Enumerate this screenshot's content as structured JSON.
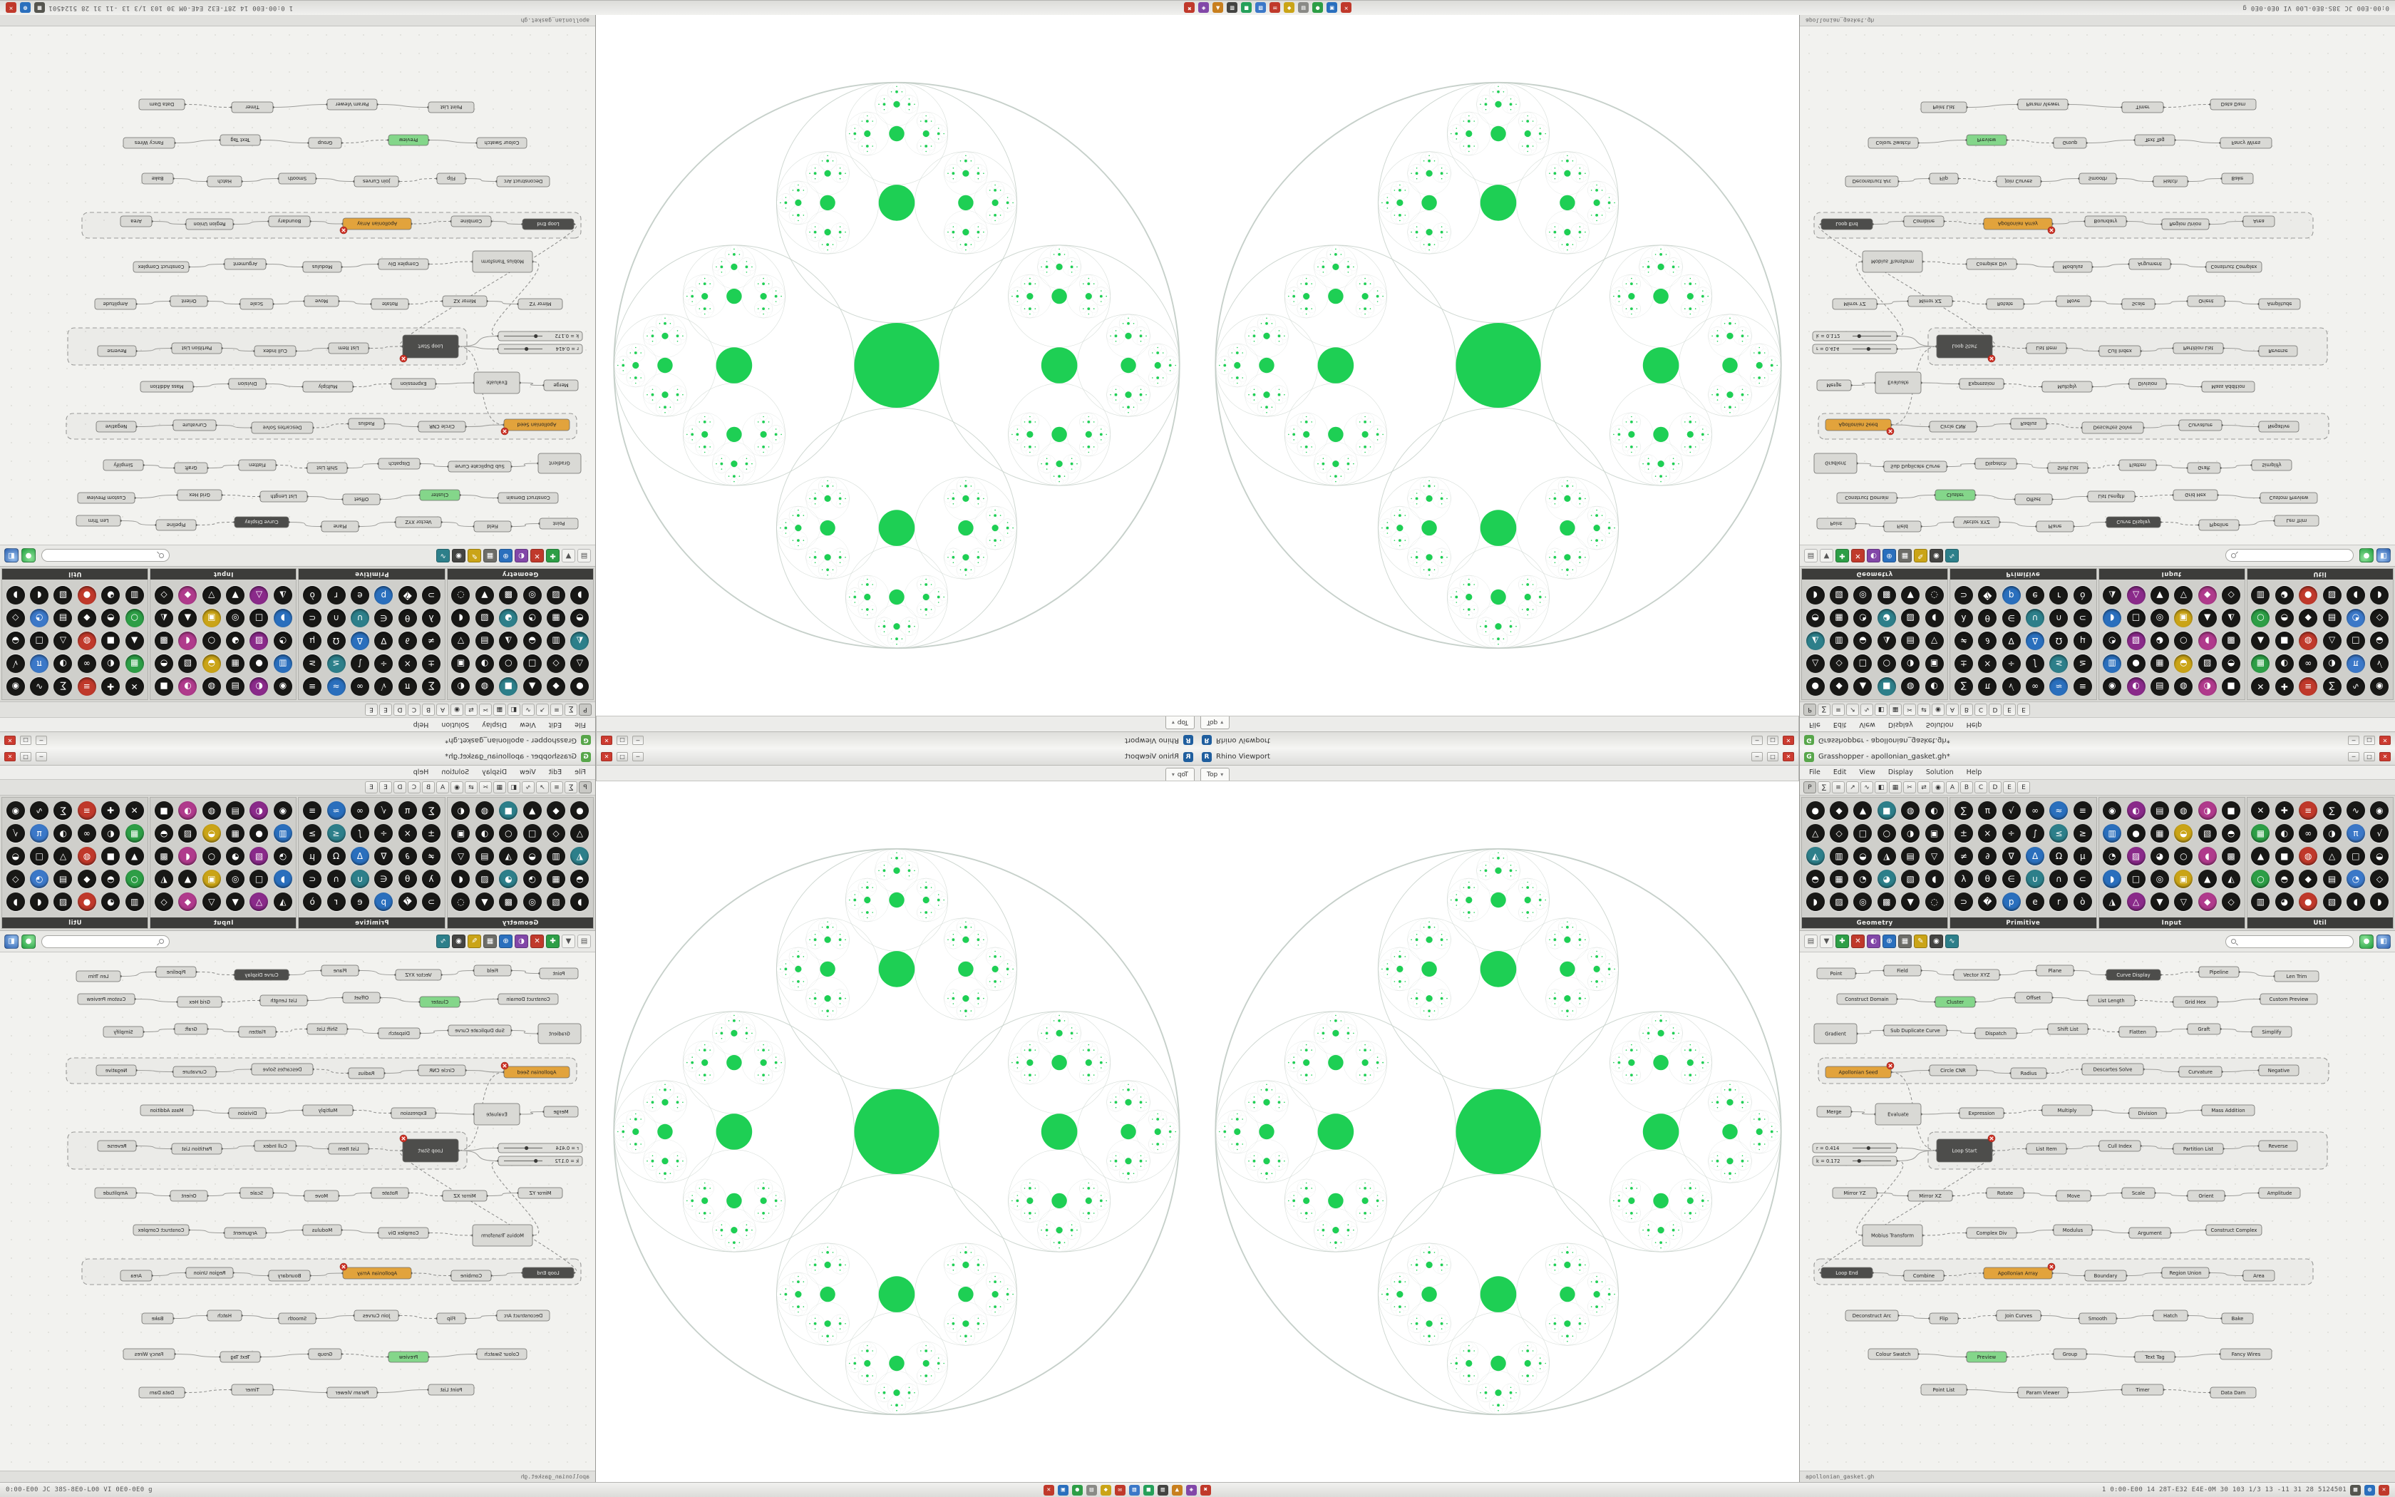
{
  "os_bar": {
    "left_text": "0:00-E00 JC 38S-8E0-L00 VI 0E0-0E0 g",
    "right_text": "1 0:00-E00 14 28T-E32 E4E-0M 30 103 1/3 13 -11 31 28 5124501",
    "center_icons": [
      {
        "name": "tray-close-icon",
        "g": "✕",
        "bg": "#c0392b"
      },
      {
        "name": "tray-files-icon",
        "g": "▣",
        "bg": "#2a6fbd"
      },
      {
        "name": "tray-chat-icon",
        "g": "●",
        "bg": "#2d9e46"
      },
      {
        "name": "tray-window-icon",
        "g": "▤",
        "bg": "#8a8a86"
      },
      {
        "name": "tray-media-icon",
        "g": "◆",
        "bg": "#caa417"
      },
      {
        "name": "tray-mail-icon",
        "g": "✉",
        "bg": "#c0392b"
      },
      {
        "name": "tray-net-icon",
        "g": "▧",
        "bg": "#3b78c8"
      },
      {
        "name": "tray-disk-icon",
        "g": "■",
        "bg": "#25a05a"
      },
      {
        "name": "tray-terminal-icon",
        "g": "▥",
        "bg": "#444442"
      },
      {
        "name": "tray-paint-icon",
        "g": "▲",
        "bg": "#c87f1e"
      },
      {
        "name": "tray-music-icon",
        "g": "◈",
        "bg": "#8247a8"
      },
      {
        "name": "tray-quit-icon",
        "g": "✖",
        "bg": "#c0392b"
      }
    ],
    "right_icons": [
      {
        "name": "tray-grid-icon",
        "g": "▦",
        "bg": "#55554f"
      },
      {
        "name": "tray-globe-icon",
        "g": "◍",
        "bg": "#2a6fbd"
      },
      {
        "name": "tray-alert-icon",
        "g": "✕",
        "bg": "#c0392b"
      }
    ]
  },
  "chrome": {
    "win_buttons": [
      "─",
      "□",
      "✕"
    ],
    "rhino_icon": "R",
    "gh_icon": "G",
    "caret": "▾"
  },
  "viewport": {
    "title": "Rhino Viewport",
    "tab": "Top",
    "fractal": {
      "green": "#1ecf54",
      "outline": "#c3cec7",
      "depth": 5,
      "center_ratio": 0.15,
      "child_ratio": 0.425
    }
  },
  "gh": {
    "title": "Grasshopper - apollonian_gasket.gh*",
    "status": "apollonian_gasket.gh",
    "menus": [
      "File",
      "Edit",
      "View",
      "Display",
      "Solution",
      "Help"
    ],
    "tabs": [
      "P",
      "∑",
      "≡",
      "↗",
      "∿",
      "◧",
      "▦",
      "✂",
      "⇄",
      "◉",
      "A",
      "B",
      "C",
      "D",
      "E",
      "E"
    ],
    "search_placeholder": "",
    "palette": [
      {
        "name": "Geometry",
        "glyphs": "●◆▲■◍◐△◇□○◑▣◭▥◒◮▤▽◓▦◔◕▧◖◗▨◎▩▼◌",
        "colors": [
          "#181816",
          "#181816",
          "#181816",
          "#2d7f8a",
          "#181816",
          "#181816",
          "#181816",
          "#181816",
          "#181816"
        ]
      },
      {
        "name": "Primitive",
        "glyphs": "∑π√∞≈≡±×÷∫≤≥≠∂∇ΔΩμλθ∈∪∩⊂⊃�però△◆□",
        "colors": [
          "#181816",
          "#181816",
          "#181816",
          "#181816",
          "#2a6fbd",
          "#181816",
          "#181816",
          "#181816",
          "#181816",
          "#181816",
          "#2d7f8a"
        ]
      },
      {
        "name": "Input",
        "glyphs": "◉◐▤◍◑■▥●▦◒▧◓◔▨◕○◖▩◗□◎▣▲◭◮△▼▽◆◇",
        "colors": [
          "#181816",
          "#8a2a8a",
          "#181816",
          "#181816",
          "#b03a8c",
          "#181816",
          "#2a6fbd",
          "#181816",
          "#181816",
          "#caa417",
          "#181816",
          "#181816"
        ]
      },
      {
        "name": "Util",
        "glyphs": "✕✚≡∑∿◉▦◐∞◑π√▲■◍△□◒○◓◆▤◔◇▥◕●▧◖◗",
        "colors": [
          "#181816",
          "#181816",
          "#c0392b",
          "#181816",
          "#181816",
          "#181816",
          "#2d9e46",
          "#181816",
          "#181816",
          "#181816",
          "#3b78c8",
          "#181816"
        ]
      }
    ],
    "toolbar": {
      "icons": [
        {
          "name": "open-file-icon",
          "g": "▤",
          "bg": "#f2f2ef",
          "fg": "#555"
        },
        {
          "name": "save-file-icon",
          "g": "▼",
          "bg": "#f2f2ef",
          "fg": "#555"
        },
        {
          "name": "zoom-in-icon",
          "g": "✚",
          "bg": "#2d9e46",
          "fg": "#fff"
        },
        {
          "name": "zoom-out-icon",
          "g": "✕",
          "bg": "#c0392b",
          "fg": "#fff"
        },
        {
          "name": "preview-shaded-icon",
          "g": "◐",
          "bg": "#8247a8",
          "fg": "#fff"
        },
        {
          "name": "zoom-extents-icon",
          "g": "⊕",
          "bg": "#2a6fbd",
          "fg": "#fff"
        },
        {
          "name": "grid-snap-icon",
          "g": "▦",
          "bg": "#6d6d68",
          "fg": "#fff"
        },
        {
          "name": "sketch-tool-icon",
          "g": "✎",
          "bg": "#caa417",
          "fg": "#fff"
        },
        {
          "name": "target-icon",
          "g": "◉",
          "bg": "#444442",
          "fg": "#fff"
        },
        {
          "name": "wire-display-icon",
          "g": "∿",
          "bg": "#2d7f8a",
          "fg": "#fff"
        }
      ],
      "view_buttons": [
        {
          "name": "preview-on-button",
          "g": "●",
          "bg1": "#8fe39a",
          "bg2": "#1f9e3d"
        },
        {
          "name": "preview-wire-button",
          "g": "◧",
          "bg1": "#9cc3ef",
          "bg2": "#2a5fae"
        }
      ]
    },
    "canvas": {
      "nodes": [
        [
          24,
          22,
          54,
          15,
          "Point",
          "g"
        ],
        [
          118,
          18,
          52,
          15,
          "Field",
          "g"
        ],
        [
          216,
          24,
          64,
          15,
          "Vector XYZ",
          "g"
        ],
        [
          332,
          18,
          52,
          15,
          "Plane",
          "g"
        ],
        [
          430,
          24,
          76,
          15,
          "Curve Display",
          "d"
        ],
        [
          560,
          20,
          56,
          15,
          "Pipeline",
          "g"
        ],
        [
          666,
          26,
          62,
          15,
          "Len Trim",
          "g"
        ],
        [
          52,
          58,
          84,
          15,
          "Construct Domain",
          "g"
        ],
        [
          190,
          62,
          56,
          15,
          "Cluster",
          "s"
        ],
        [
          302,
          56,
          52,
          15,
          "Offset",
          "g"
        ],
        [
          404,
          60,
          66,
          15,
          "List Length",
          "g"
        ],
        [
          524,
          62,
          62,
          15,
          "Grid Hex",
          "g"
        ],
        [
          646,
          58,
          80,
          15,
          "Custom Preview",
          "g"
        ],
        [
          20,
          100,
          60,
          28,
          "Gradient",
          "g"
        ],
        [
          118,
          102,
          88,
          15,
          "Sub Duplicate Curve",
          "g"
        ],
        [
          246,
          106,
          58,
          15,
          "Dispatch",
          "g"
        ],
        [
          348,
          100,
          56,
          15,
          "Shift List",
          "g"
        ],
        [
          448,
          104,
          52,
          15,
          "Flatten",
          "g"
        ],
        [
          544,
          100,
          46,
          15,
          "Graft",
          "g"
        ],
        [
          634,
          104,
          56,
          15,
          "Simplify",
          "g"
        ],
        [
          36,
          160,
          92,
          16,
          "Apollonian Seed",
          "w"
        ],
        [
          182,
          158,
          66,
          15,
          "Circle CNR",
          "g"
        ],
        [
          296,
          162,
          50,
          15,
          "Radius",
          "g"
        ],
        [
          396,
          156,
          86,
          16,
          "Descartes Solve",
          "g"
        ],
        [
          532,
          160,
          60,
          15,
          "Curvature",
          "g"
        ],
        [
          644,
          158,
          56,
          15,
          "Negative",
          "g"
        ],
        [
          24,
          216,
          48,
          15,
          "Merge",
          "g"
        ],
        [
          106,
          212,
          64,
          30,
          "Evaluate",
          "g"
        ],
        [
          224,
          218,
          62,
          15,
          "Expression",
          "g"
        ],
        [
          340,
          214,
          70,
          15,
          "Multiply",
          "g"
        ],
        [
          462,
          218,
          52,
          15,
          "Division",
          "g"
        ],
        [
          564,
          214,
          74,
          15,
          "Mass Addition",
          "g"
        ],
        [
          18,
          268,
          118,
          13,
          "r = 0.414",
          "slider"
        ],
        [
          18,
          286,
          118,
          13,
          "k = 0.172",
          "slider"
        ],
        [
          192,
          262,
          78,
          32,
          "Loop Start",
          "d"
        ],
        [
          318,
          268,
          56,
          15,
          "List Item",
          "g"
        ],
        [
          420,
          264,
          58,
          15,
          "Cull Index",
          "g"
        ],
        [
          524,
          268,
          70,
          15,
          "Partition List",
          "g"
        ],
        [
          644,
          264,
          54,
          15,
          "Reverse",
          "g"
        ],
        [
          46,
          330,
          62,
          15,
          "Mirror YZ",
          "g"
        ],
        [
          152,
          334,
          62,
          15,
          "Mirror XZ",
          "g"
        ],
        [
          262,
          330,
          52,
          15,
          "Rotate",
          "g"
        ],
        [
          360,
          334,
          48,
          15,
          "Move",
          "g"
        ],
        [
          452,
          330,
          46,
          15,
          "Scale",
          "g"
        ],
        [
          544,
          334,
          52,
          15,
          "Orient",
          "g"
        ],
        [
          644,
          330,
          58,
          15,
          "Amplitude",
          "g"
        ],
        [
          88,
          382,
          84,
          30,
          "Mobius Transform",
          "g"
        ],
        [
          234,
          386,
          70,
          15,
          "Complex Div",
          "g"
        ],
        [
          356,
          382,
          54,
          15,
          "Modulus",
          "g"
        ],
        [
          462,
          386,
          58,
          15,
          "Argument",
          "g"
        ],
        [
          570,
          382,
          78,
          15,
          "Construct Complex",
          "g"
        ],
        [
          30,
          442,
          72,
          15,
          "Loop End",
          "d"
        ],
        [
          146,
          446,
          56,
          15,
          "Combine",
          "g"
        ],
        [
          258,
          442,
          96,
          16,
          "Apollonian Array",
          "w"
        ],
        [
          400,
          446,
          58,
          15,
          "Boundary",
          "g"
        ],
        [
          508,
          442,
          66,
          15,
          "Region Union",
          "g"
        ],
        [
          622,
          446,
          44,
          15,
          "Area",
          "g"
        ],
        [
          64,
          502,
          74,
          15,
          "Deconstruct Arc",
          "g"
        ],
        [
          182,
          506,
          40,
          15,
          "Flip",
          "g"
        ],
        [
          276,
          502,
          62,
          15,
          "Join Curves",
          "g"
        ],
        [
          392,
          506,
          52,
          15,
          "Smooth",
          "g"
        ],
        [
          496,
          502,
          48,
          15,
          "Hatch",
          "g"
        ],
        [
          592,
          506,
          44,
          15,
          "Bake",
          "g"
        ],
        [
          96,
          556,
          70,
          15,
          "Colour Swatch",
          "g"
        ],
        [
          234,
          560,
          56,
          15,
          "Preview",
          "s"
        ],
        [
          356,
          556,
          46,
          15,
          "Group",
          "g"
        ],
        [
          470,
          560,
          56,
          15,
          "Text Tag",
          "g"
        ],
        [
          590,
          556,
          72,
          15,
          "Fancy Wires",
          "g"
        ],
        [
          170,
          606,
          64,
          15,
          "Point List",
          "g"
        ],
        [
          306,
          610,
          70,
          15,
          "Param Viewer",
          "g"
        ],
        [
          452,
          606,
          58,
          15,
          "Timer",
          "g"
        ],
        [
          576,
          610,
          64,
          15,
          "Data Dam",
          "g"
        ]
      ],
      "groups": [
        [
          26,
          148,
          716,
          36
        ],
        [
          180,
          252,
          560,
          52
        ],
        [
          20,
          430,
          700,
          36
        ]
      ],
      "extra_wires": [
        [
          20,
          34
        ],
        [
          33,
          46
        ],
        [
          34,
          51
        ]
      ],
      "error_nodes": [
        20,
        34,
        53
      ]
    }
  }
}
